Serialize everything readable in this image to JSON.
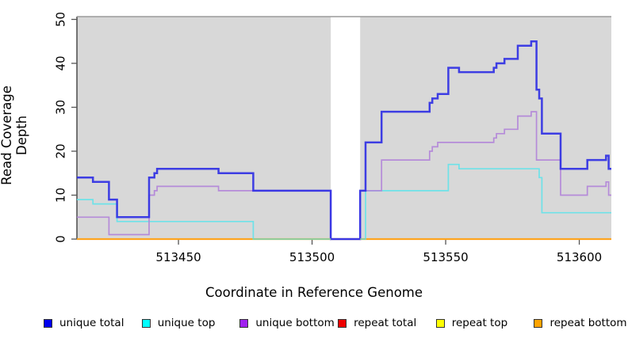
{
  "figure": {
    "x_title": "Coordinate in Reference Genome",
    "y_title": "Read Coverage Depth"
  },
  "chart_data": {
    "type": "line",
    "subtype": "step-coverage-plot",
    "x_domain": [
      513412,
      513612
    ],
    "y_domain": [
      0,
      50
    ],
    "x_ticks": [
      513450,
      513500,
      513550,
      513600
    ],
    "y_ticks": [
      0,
      10,
      20,
      30,
      40,
      50
    ],
    "xlabel": "Coordinate in Reference Genome",
    "ylabel": "Read Coverage Depth",
    "plot_bg_color": "#d8d8d8",
    "masked_region": {
      "x0": 513507,
      "x1": 513518,
      "color": "#ffffff"
    },
    "border_color": "#9a9a9a",
    "axis_color": "#333333",
    "tick_color": "#555555",
    "series": [
      {
        "name": "repeat total",
        "color": "#e03030",
        "width": 2,
        "z": 1,
        "points": [
          [
            513412,
            0
          ]
        ]
      },
      {
        "name": "repeat top",
        "color": "#f5e93c",
        "width": 2,
        "z": 2,
        "points": [
          [
            513412,
            0
          ]
        ]
      },
      {
        "name": "repeat bottom",
        "color": "#ff9e1e",
        "width": 2.2,
        "z": 3,
        "points": [
          [
            513412,
            0
          ]
        ]
      },
      {
        "name": "unique top",
        "color": "#63e3ea",
        "width": 1.7,
        "z": 4,
        "points": [
          [
            513412,
            9
          ],
          [
            513418,
            8
          ],
          [
            513427,
            4
          ],
          [
            513478,
            0
          ],
          [
            513520,
            11
          ],
          [
            513551,
            17
          ],
          [
            513555,
            16
          ],
          [
            513585,
            14
          ],
          [
            513586,
            6
          ]
        ]
      },
      {
        "name": "unique bottom",
        "color": "#b183d9",
        "width": 1.7,
        "z": 6,
        "points": [
          [
            513412,
            5
          ],
          [
            513424,
            1
          ],
          [
            513439,
            10
          ],
          [
            513441,
            11
          ],
          [
            513442,
            12
          ],
          [
            513465,
            11
          ],
          [
            513507,
            0
          ],
          [
            513518,
            11
          ],
          [
            513526,
            18
          ],
          [
            513544,
            20
          ],
          [
            513545,
            21
          ],
          [
            513547,
            22
          ],
          [
            513568,
            23
          ],
          [
            513569,
            24
          ],
          [
            513572,
            25
          ],
          [
            513577,
            28
          ],
          [
            513582,
            29
          ],
          [
            513584,
            18
          ],
          [
            513593,
            10
          ],
          [
            513603,
            12
          ],
          [
            513610,
            13
          ],
          [
            513611,
            10
          ]
        ]
      },
      {
        "name": "unique total",
        "color": "#2c2ce4",
        "width": 2.5,
        "z": 7,
        "points": [
          [
            513412,
            14
          ],
          [
            513418,
            13
          ],
          [
            513424,
            9
          ],
          [
            513427,
            5
          ],
          [
            513439,
            14
          ],
          [
            513441,
            15
          ],
          [
            513442,
            16
          ],
          [
            513465,
            15
          ],
          [
            513478,
            11
          ],
          [
            513507,
            0
          ],
          [
            513518,
            11
          ],
          [
            513520,
            22
          ],
          [
            513526,
            29
          ],
          [
            513544,
            31
          ],
          [
            513545,
            32
          ],
          [
            513547,
            33
          ],
          [
            513551,
            39
          ],
          [
            513555,
            38
          ],
          [
            513568,
            39
          ],
          [
            513569,
            40
          ],
          [
            513572,
            41
          ],
          [
            513577,
            44
          ],
          [
            513582,
            45
          ],
          [
            513584,
            34
          ],
          [
            513585,
            32
          ],
          [
            513586,
            24
          ],
          [
            513593,
            16
          ],
          [
            513603,
            18
          ],
          [
            513610,
            19
          ],
          [
            513611,
            16
          ]
        ]
      }
    ],
    "zero_overlay_segments": [
      {
        "x0": 513478,
        "x1": 513507,
        "color": "#8fcb97",
        "width": 1.7
      },
      {
        "x0": 513518,
        "x1": 513520,
        "color": "#8fcb97",
        "width": 1.7
      }
    ],
    "legend_position": "bottom",
    "legend": [
      {
        "label": "unique total",
        "swatch_color": "#0000ee"
      },
      {
        "label": "unique top",
        "swatch_color": "#00ffff"
      },
      {
        "label": "unique bottom",
        "swatch_color": "#a020f0"
      },
      {
        "label": "repeat total",
        "swatch_color": "#ee0000"
      },
      {
        "label": "repeat top",
        "swatch_color": "#ffff00"
      },
      {
        "label": "repeat bottom",
        "swatch_color": "#ffa300"
      }
    ]
  }
}
